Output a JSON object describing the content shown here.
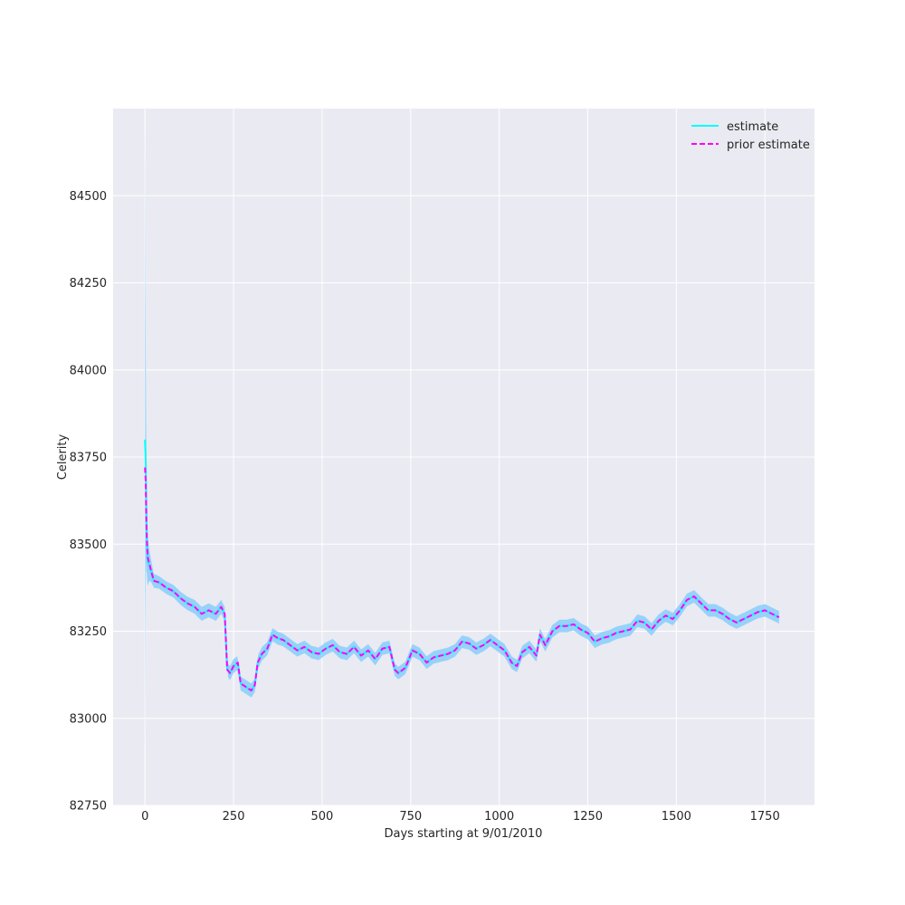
{
  "chart_data": {
    "type": "line",
    "title": "",
    "xlabel": "Days starting at 9/01/2010",
    "ylabel": "Celerity",
    "xlim": [
      -90,
      1890
    ],
    "ylim": [
      82750,
      84750
    ],
    "xticks": [
      0,
      250,
      500,
      750,
      1000,
      1250,
      1500,
      1750
    ],
    "xtick_labels": [
      "0",
      "250",
      "500",
      "750",
      "1000",
      "1250",
      "1500",
      "1750"
    ],
    "yticks": [
      82750,
      83000,
      83250,
      83500,
      83750,
      84000,
      84250,
      84500
    ],
    "ytick_labels": [
      "82750",
      "83000",
      "83250",
      "83500",
      "83750",
      "84000",
      "84250",
      "84500"
    ],
    "grid": true,
    "legend_position": "upper right",
    "series": [
      {
        "name": "estimate",
        "color": "#00ffff",
        "style": "solid",
        "x": [
          0,
          2,
          4,
          6,
          8,
          12,
          18,
          25,
          40,
          60,
          80,
          100,
          120,
          140,
          160,
          180,
          200,
          215,
          225,
          228,
          232,
          240,
          250,
          262,
          270,
          285,
          300,
          310,
          318,
          330,
          345,
          360,
          375,
          390,
          410,
          430,
          450,
          470,
          490,
          510,
          530,
          550,
          570,
          590,
          610,
          630,
          650,
          670,
          690,
          705,
          715,
          735,
          755,
          775,
          795,
          815,
          835,
          855,
          875,
          895,
          915,
          935,
          955,
          975,
          995,
          1015,
          1035,
          1050,
          1065,
          1085,
          1105,
          1115,
          1130,
          1150,
          1170,
          1190,
          1210,
          1230,
          1250,
          1270,
          1290,
          1310,
          1330,
          1350,
          1370,
          1390,
          1410,
          1430,
          1450,
          1470,
          1490,
          1510,
          1530,
          1550,
          1570,
          1590,
          1610,
          1630,
          1650,
          1670,
          1690,
          1710,
          1730,
          1750,
          1770,
          1790
        ],
        "values": [
          83800,
          83740,
          83580,
          83500,
          83450,
          83440,
          83420,
          83395,
          83390,
          83375,
          83365,
          83345,
          83330,
          83320,
          83300,
          83310,
          83300,
          83320,
          83300,
          83230,
          83140,
          83130,
          83150,
          83160,
          83100,
          83090,
          83080,
          83095,
          83160,
          83185,
          83200,
          83240,
          83230,
          83225,
          83210,
          83195,
          83205,
          83190,
          83185,
          83200,
          83210,
          83190,
          83185,
          83205,
          83180,
          83195,
          83170,
          83200,
          83205,
          83140,
          83130,
          83145,
          83195,
          83185,
          83160,
          83175,
          83180,
          83185,
          83195,
          83220,
          83215,
          83200,
          83210,
          83225,
          83210,
          83195,
          83160,
          83150,
          83190,
          83205,
          83180,
          83240,
          83210,
          83250,
          83265,
          83265,
          83270,
          83255,
          83245,
          83220,
          83230,
          83235,
          83245,
          83250,
          83255,
          83280,
          83275,
          83255,
          83280,
          83295,
          83285,
          83310,
          83340,
          83350,
          83330,
          83310,
          83310,
          83300,
          83285,
          83275,
          83285,
          83295,
          83305,
          83310,
          83300,
          83290
        ]
      },
      {
        "name": "prior estimate",
        "color": "#ff00ff",
        "style": "dashed",
        "x": [
          0,
          2,
          4,
          6,
          8,
          12,
          18,
          25,
          40,
          60,
          80,
          100,
          120,
          140,
          160,
          180,
          200,
          215,
          225,
          228,
          232,
          240,
          250,
          262,
          270,
          285,
          300,
          310,
          318,
          330,
          345,
          360,
          375,
          390,
          410,
          430,
          450,
          470,
          490,
          510,
          530,
          550,
          570,
          590,
          610,
          630,
          650,
          670,
          690,
          705,
          715,
          735,
          755,
          775,
          795,
          815,
          835,
          855,
          875,
          895,
          915,
          935,
          955,
          975,
          995,
          1015,
          1035,
          1050,
          1065,
          1085,
          1105,
          1115,
          1130,
          1150,
          1170,
          1190,
          1210,
          1230,
          1250,
          1270,
          1290,
          1310,
          1330,
          1350,
          1370,
          1390,
          1410,
          1430,
          1450,
          1470,
          1490,
          1510,
          1530,
          1550,
          1570,
          1590,
          1610,
          1630,
          1650,
          1670,
          1690,
          1710,
          1730,
          1750,
          1770,
          1790
        ],
        "values": [
          83720,
          83680,
          83560,
          83490,
          83460,
          83445,
          83420,
          83395,
          83390,
          83375,
          83365,
          83345,
          83330,
          83320,
          83300,
          83310,
          83300,
          83320,
          83300,
          83235,
          83140,
          83130,
          83150,
          83160,
          83100,
          83090,
          83080,
          83095,
          83160,
          83185,
          83200,
          83240,
          83230,
          83225,
          83210,
          83195,
          83205,
          83190,
          83185,
          83200,
          83210,
          83190,
          83185,
          83205,
          83180,
          83195,
          83170,
          83200,
          83205,
          83140,
          83130,
          83145,
          83195,
          83185,
          83160,
          83175,
          83180,
          83185,
          83195,
          83220,
          83215,
          83200,
          83210,
          83225,
          83210,
          83195,
          83160,
          83150,
          83190,
          83205,
          83180,
          83240,
          83210,
          83250,
          83265,
          83265,
          83270,
          83255,
          83245,
          83220,
          83230,
          83235,
          83245,
          83250,
          83255,
          83280,
          83275,
          83255,
          83280,
          83295,
          83285,
          83310,
          83340,
          83350,
          83330,
          83310,
          83310,
          83300,
          83285,
          83275,
          83285,
          83295,
          83305,
          83310,
          83300,
          83290
        ]
      }
    ],
    "confidence_band": {
      "color": "#87cefa",
      "x": [
        0,
        1,
        2,
        3,
        5,
        8,
        12,
        18,
        25,
        40,
        80,
        150,
        220,
        300,
        400,
        600,
        800,
        1000,
        1200,
        1400,
        1600,
        1790
      ],
      "halfwidth": [
        900,
        500,
        350,
        200,
        120,
        70,
        45,
        30,
        20,
        18,
        18,
        20,
        20,
        20,
        18,
        18,
        18,
        18,
        18,
        18,
        18,
        18
      ]
    }
  }
}
